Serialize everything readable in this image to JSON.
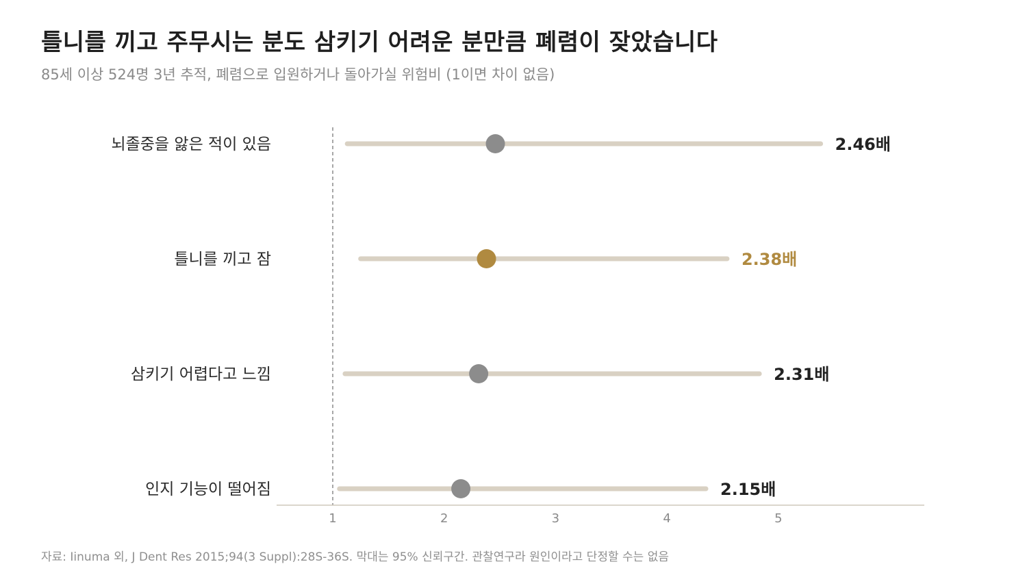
{
  "title": "틀니를 끼고 주무시는 분도 삼키기 어려운 분만큼 폐렴이 잦았습니다",
  "subtitle": "85세 이상 524명 3년 추적, 폐렴으로 입원하거나 돌아가실 위험비 (1이면 차이 없음)",
  "footnote": "자료: Iinuma 외, J Dent Res 2015;94(3 Suppl):28S-36S. 막대는 95% 신뢰구간. 관찰연구라 원인이라고 단정할 수는 없음",
  "colors": {
    "ci_bar": "#d9d1c3",
    "point": "#8c8c8c",
    "highlight": "#b08a40",
    "text_dark": "#222222",
    "axis": "#cfc8bb",
    "reference_line": "#8a8a8a"
  },
  "chart_data": {
    "type": "forest",
    "reference_value": 1,
    "xlim": [
      0.5,
      6.3
    ],
    "x_ticks": [
      "1",
      "2",
      "3",
      "4",
      "5"
    ],
    "rows": [
      {
        "label": "뇌졸중을 앓은 적이 있음",
        "estimate": 2.46,
        "ci_low": 1.13,
        "ci_high": 5.38,
        "value_label": "2.46배",
        "highlight": false
      },
      {
        "label": "틀니를 끼고 잠",
        "estimate": 2.38,
        "ci_low": 1.25,
        "ci_high": 4.54,
        "value_label": "2.38배",
        "highlight": true
      },
      {
        "label": "삼키기 어렵다고 느낌",
        "estimate": 2.31,
        "ci_low": 1.11,
        "ci_high": 4.83,
        "value_label": "2.31배",
        "highlight": false
      },
      {
        "label": "인지 기능이 떨어짐",
        "estimate": 2.15,
        "ci_low": 1.06,
        "ci_high": 4.35,
        "value_label": "2.15배",
        "highlight": false
      }
    ]
  }
}
